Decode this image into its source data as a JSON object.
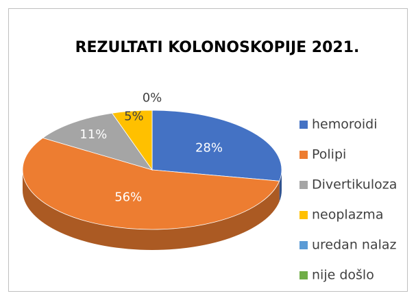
{
  "chart_data": {
    "type": "pie3d",
    "title": "REZULTATI KOLONOSKOPIJE 2021.",
    "categories": [
      "hemoroidi",
      "Polipi",
      "Divertikuloza",
      "neoplazma",
      "uredan nalaz",
      "nije došlo"
    ],
    "values": [
      28,
      56,
      11,
      5,
      0,
      null
    ],
    "value_labels": [
      "28%",
      "56%",
      "11%",
      "5%",
      "0%",
      null
    ],
    "colors": [
      "#4472c4",
      "#ed7d31",
      "#a5a5a5",
      "#ffc000",
      "#5b9bd5",
      "#70ad47"
    ],
    "legend": "right"
  }
}
